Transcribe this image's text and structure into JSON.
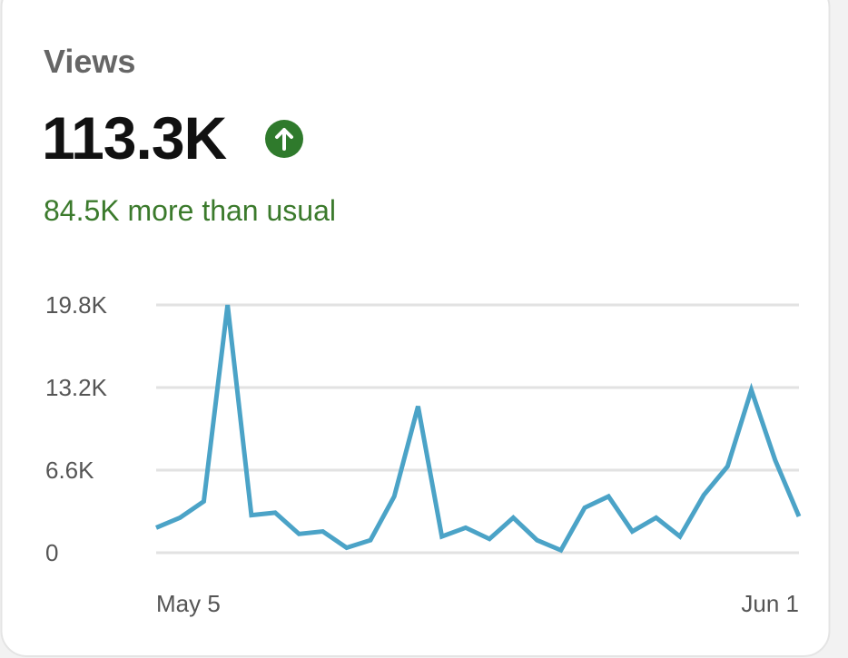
{
  "card": {
    "title": "Views",
    "total": "113.3K",
    "note": "84.5K more than usual"
  },
  "chart_data": {
    "type": "line",
    "categories": [
      "May 5",
      null,
      null,
      null,
      null,
      null,
      null,
      null,
      null,
      null,
      null,
      null,
      null,
      null,
      null,
      null,
      null,
      null,
      null,
      null,
      null,
      null,
      null,
      null,
      null,
      null,
      null,
      "Jun 1"
    ],
    "series": [
      {
        "name": "Views",
        "color": "#4ba3c7",
        "values": [
          2000,
          2800,
          4100,
          19800,
          3000,
          3200,
          1500,
          1700,
          400,
          1000,
          4500,
          11700,
          1300,
          2000,
          1100,
          2800,
          1000,
          200,
          3600,
          4500,
          1700,
          2800,
          1300,
          4600,
          6900,
          13000,
          7400,
          2900
        ]
      }
    ],
    "ylim": [
      0,
      19800
    ],
    "yticks": [
      0,
      {
        "value": 6600,
        "label": "6.6K"
      },
      {
        "value": 13200,
        "label": "13.2K"
      },
      {
        "value": 19800,
        "label": "19.8K"
      }
    ],
    "grid": true
  }
}
